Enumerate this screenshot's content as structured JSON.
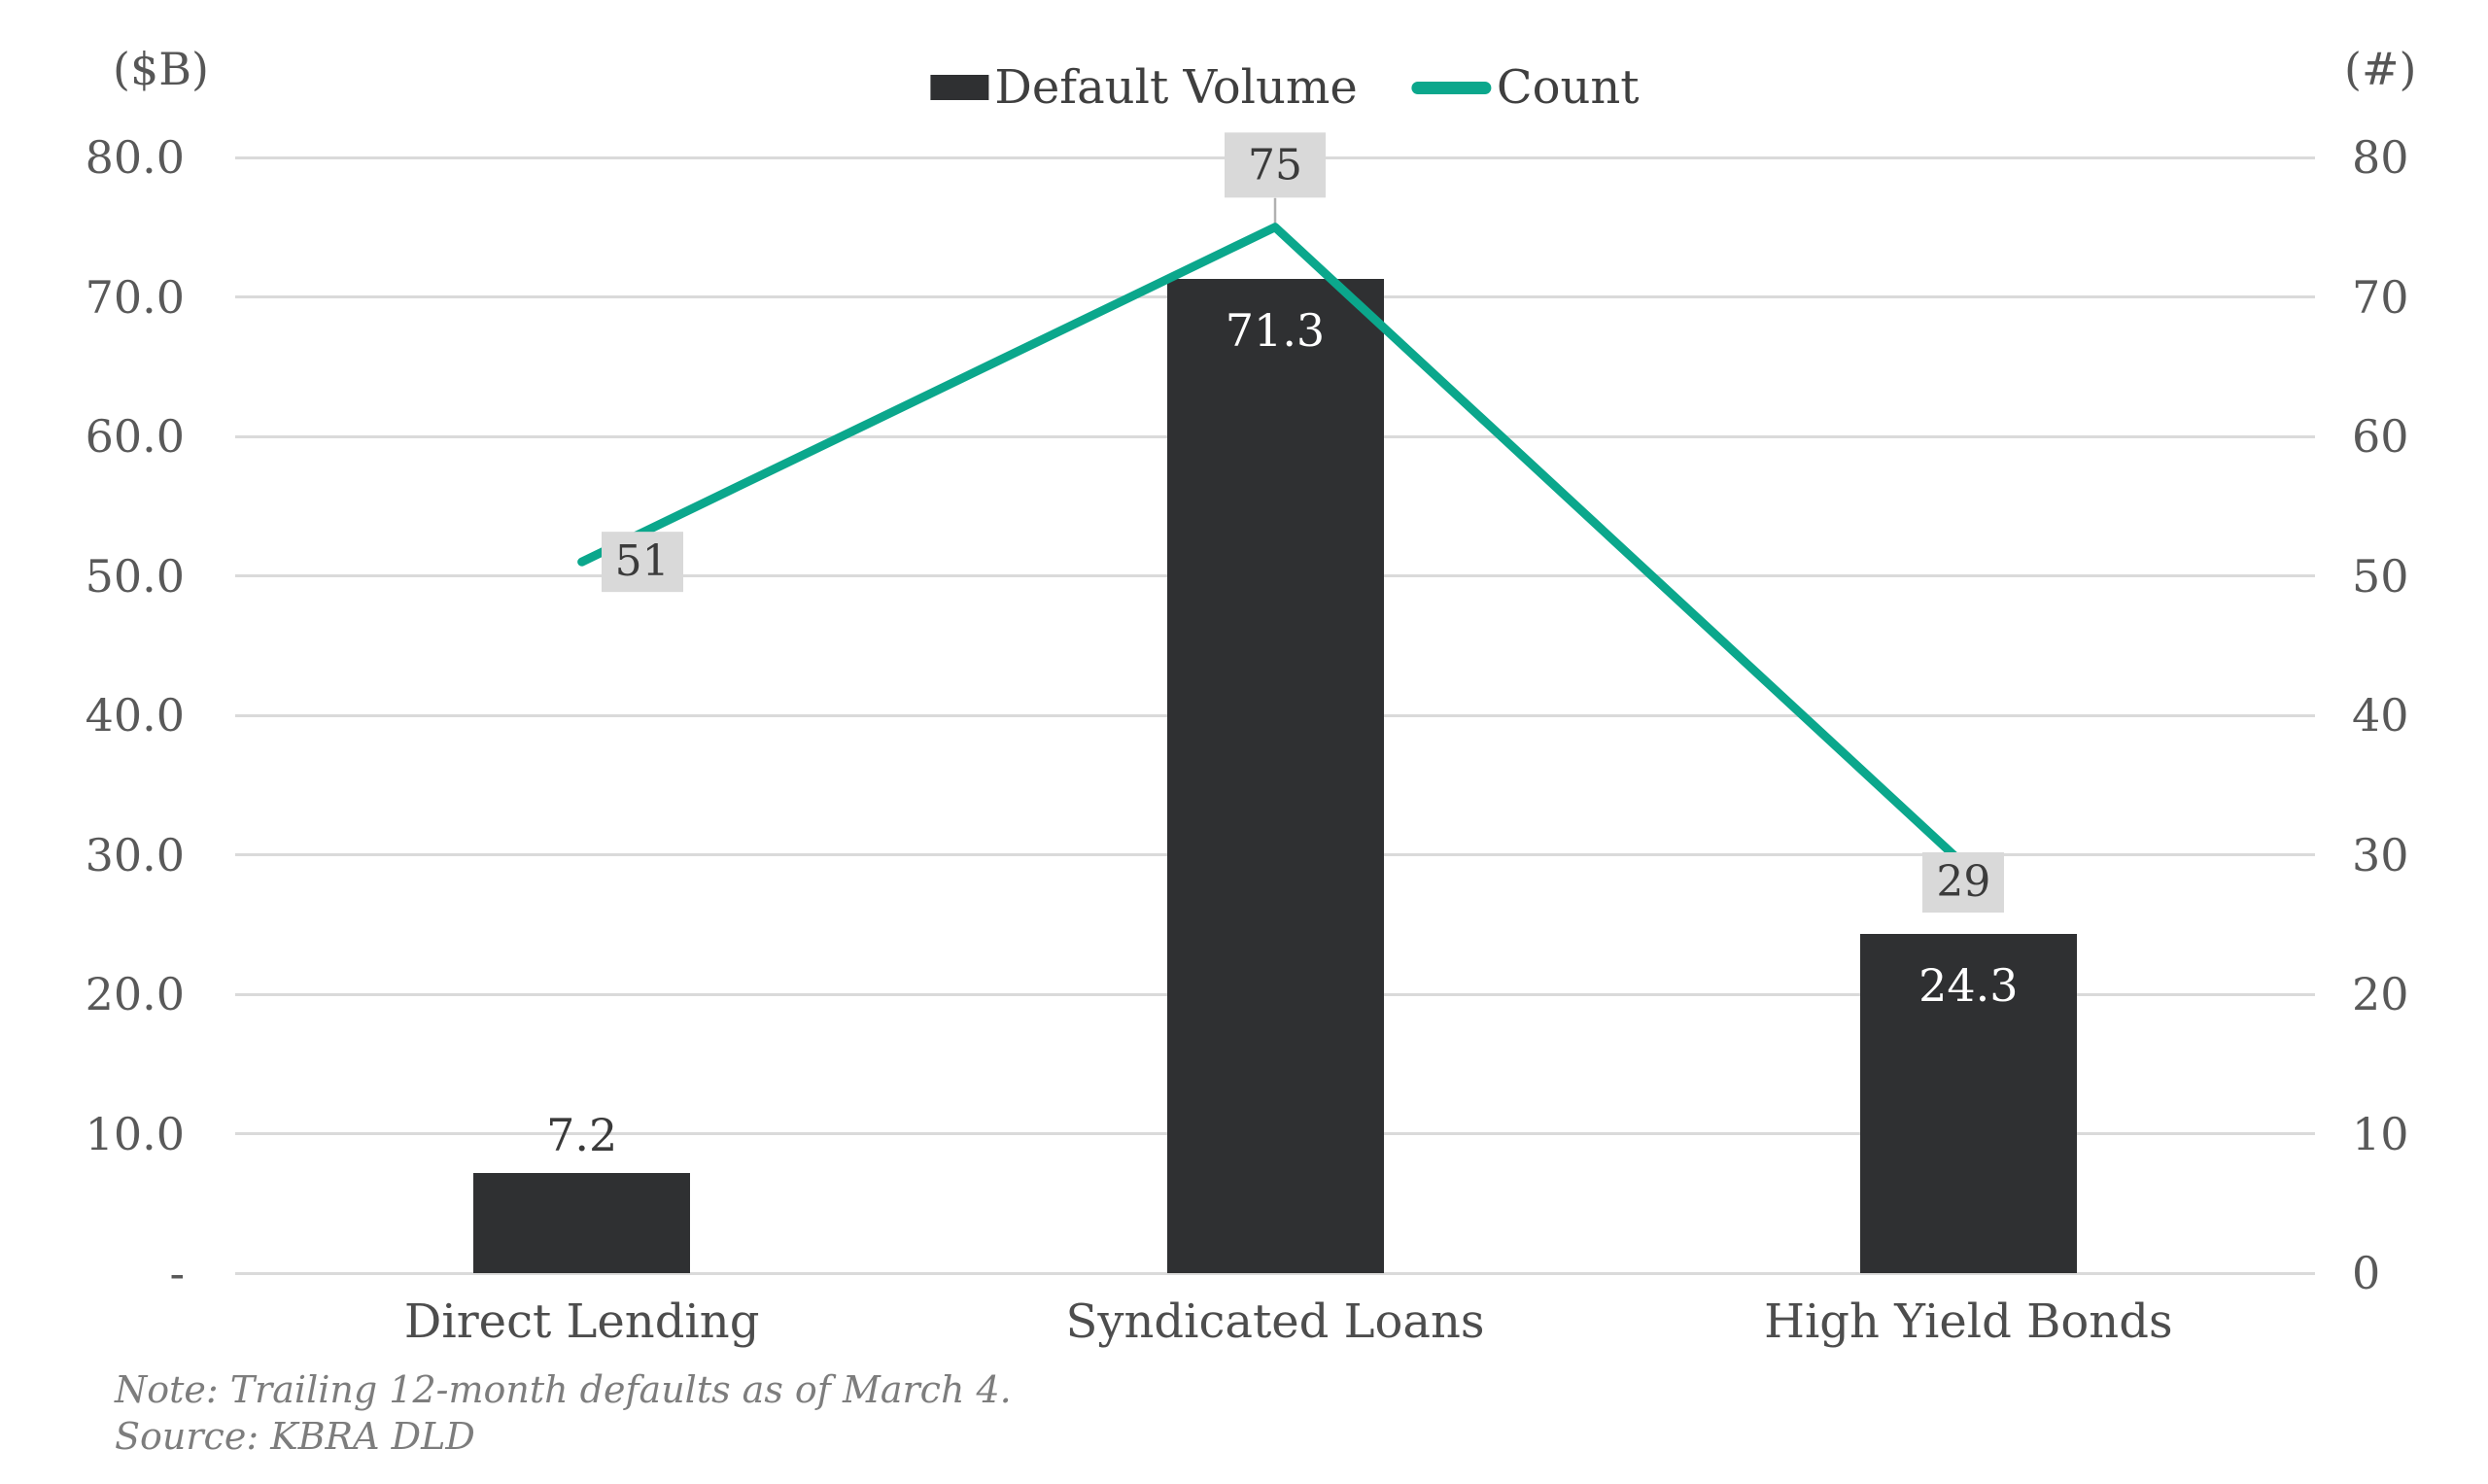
{
  "chart_data": {
    "type": "combo-bar-line",
    "categories": [
      "Direct Lending",
      "Syndicated Loans",
      "High Yield Bonds"
    ],
    "series": [
      {
        "name": "Default Volume",
        "type": "bar",
        "axis": "left",
        "values": [
          7.2,
          71.3,
          24.3
        ],
        "data_labels": [
          "7.2",
          "71.3",
          "24.3"
        ],
        "color": "#2f3032"
      },
      {
        "name": "Count",
        "type": "line",
        "axis": "right",
        "values": [
          51,
          75,
          29
        ],
        "data_labels": [
          "51",
          "75",
          "29"
        ],
        "color": "#0ba78c"
      }
    ],
    "left_axis": {
      "unit": "($B)",
      "min": 0,
      "max": 80,
      "step": 10,
      "tick_labels": [
        "80.0",
        "70.0",
        "60.0",
        "50.0",
        "40.0",
        "30.0",
        "20.0",
        "10.0",
        "-"
      ]
    },
    "right_axis": {
      "unit": "(#)",
      "min": 0,
      "max": 80,
      "step": 10,
      "tick_labels": [
        "80",
        "70",
        "60",
        "50",
        "40",
        "30",
        "20",
        "10",
        "0"
      ]
    },
    "grid": true,
    "legend_position": "top-center",
    "count_label_placement": [
      "right",
      "above",
      "below"
    ],
    "count_label_bg": "#d9d9d9",
    "note": "Note: Trailing 12-month defaults as of March 4.",
    "source": "Source: KBRA DLD"
  }
}
